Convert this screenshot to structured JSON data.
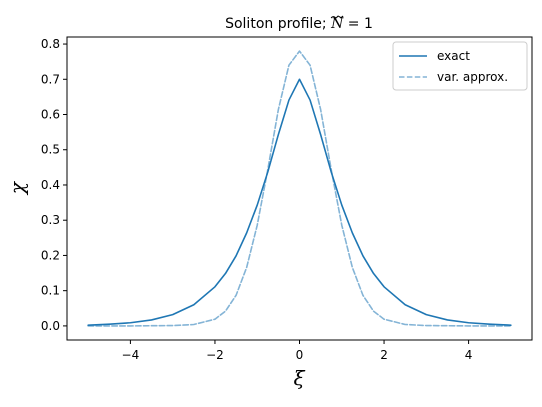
{
  "chart_data": {
    "type": "line",
    "title": "Soliton profile; Ñ = 1",
    "title_parts": {
      "prefix": "Soliton profile; ",
      "symbol": "N",
      "suffix": " = 1"
    },
    "xlabel": "ξ",
    "ylabel": "χ",
    "xlim": [
      -5.5,
      5.5
    ],
    "ylim": [
      -0.04,
      0.82
    ],
    "x_ticks": [
      -4,
      -2,
      0,
      2,
      4
    ],
    "x_tick_labels": [
      "−4",
      "−2",
      "0",
      "2",
      "4"
    ],
    "y_ticks": [
      0.0,
      0.1,
      0.2,
      0.3,
      0.4,
      0.5,
      0.6,
      0.7,
      0.8
    ],
    "y_tick_labels": [
      "0.0",
      "0.1",
      "0.2",
      "0.3",
      "0.4",
      "0.5",
      "0.6",
      "0.7",
      "0.8"
    ],
    "grid": false,
    "legend_position": "top-right",
    "series": [
      {
        "name": "exact",
        "style": "solid",
        "color": "#1f77b4",
        "opacity": 1.0,
        "x": [
          -5.0,
          -4.5,
          -4.0,
          -3.5,
          -3.0,
          -2.5,
          -2.0,
          -1.75,
          -1.5,
          -1.25,
          -1.0,
          -0.75,
          -0.5,
          -0.25,
          0.0,
          0.25,
          0.5,
          0.75,
          1.0,
          1.25,
          1.5,
          1.75,
          2.0,
          2.5,
          3.0,
          3.5,
          4.0,
          4.5,
          5.0
        ],
        "y": [
          0.002,
          0.005,
          0.009,
          0.017,
          0.032,
          0.06,
          0.111,
          0.149,
          0.199,
          0.264,
          0.343,
          0.437,
          0.543,
          0.641,
          0.7,
          0.641,
          0.543,
          0.437,
          0.343,
          0.264,
          0.199,
          0.149,
          0.111,
          0.06,
          0.032,
          0.017,
          0.009,
          0.005,
          0.002
        ]
      },
      {
        "name": "var. approx.",
        "style": "dashed",
        "color": "#1f77b4",
        "opacity": 0.55,
        "x": [
          -5.0,
          -4.0,
          -3.0,
          -2.5,
          -2.0,
          -1.75,
          -1.5,
          -1.25,
          -1.0,
          -0.75,
          -0.5,
          -0.25,
          0.0,
          0.25,
          0.5,
          0.75,
          1.0,
          1.25,
          1.5,
          1.75,
          2.0,
          2.5,
          3.0,
          4.0,
          5.0
        ],
        "y": [
          0.0,
          0.0,
          0.001,
          0.004,
          0.019,
          0.042,
          0.087,
          0.166,
          0.286,
          0.444,
          0.614,
          0.74,
          0.78,
          0.74,
          0.614,
          0.444,
          0.286,
          0.166,
          0.087,
          0.042,
          0.019,
          0.004,
          0.001,
          0.0,
          0.0
        ]
      }
    ]
  }
}
